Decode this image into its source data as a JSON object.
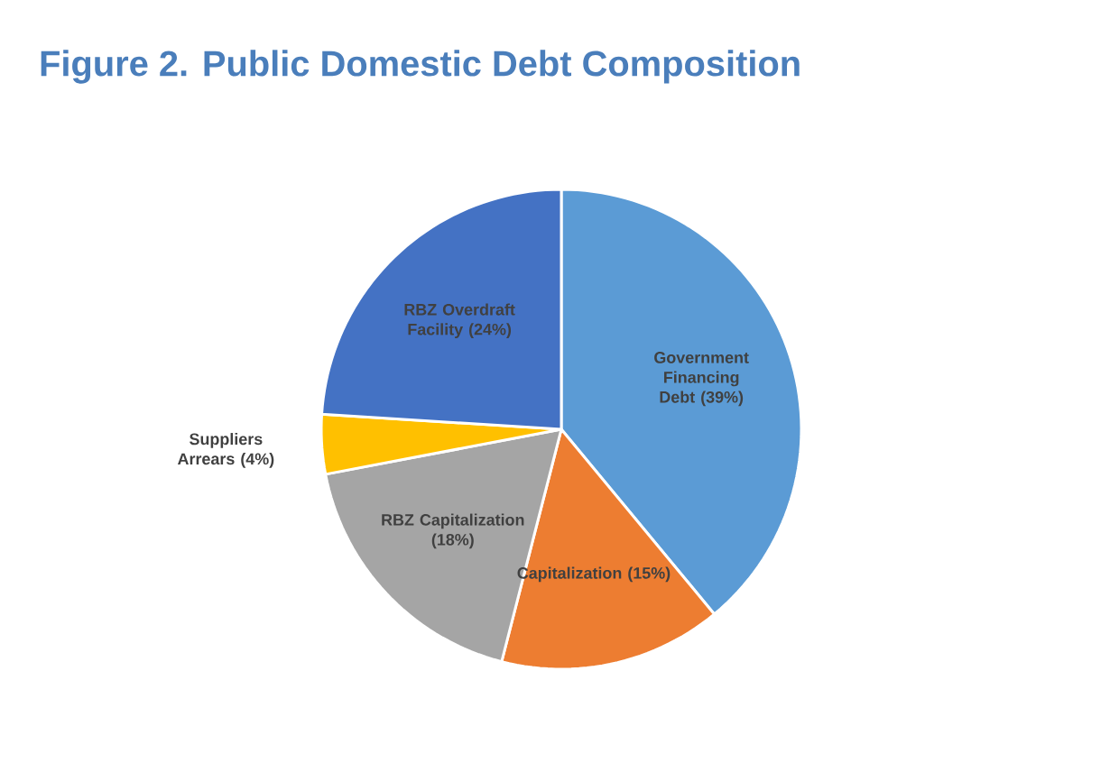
{
  "chart_data": {
    "type": "pie",
    "title": "Figure 2. Public Domestic Debt Composition",
    "categories": [
      "Government Financing Debt",
      "Capitalization",
      "RBZ Capitalization",
      "Suppliers Arrears",
      "RBZ Overdraft Facility"
    ],
    "values": [
      39,
      15,
      18,
      4,
      24
    ],
    "value_labels": [
      "(39%)",
      "(15%)",
      "(18%)",
      "(4%)",
      "(24%)"
    ],
    "colors": [
      "#5b9bd5",
      "#ed7d31",
      "#a5a5a5",
      "#ffc000",
      "#4472c4"
    ]
  }
}
